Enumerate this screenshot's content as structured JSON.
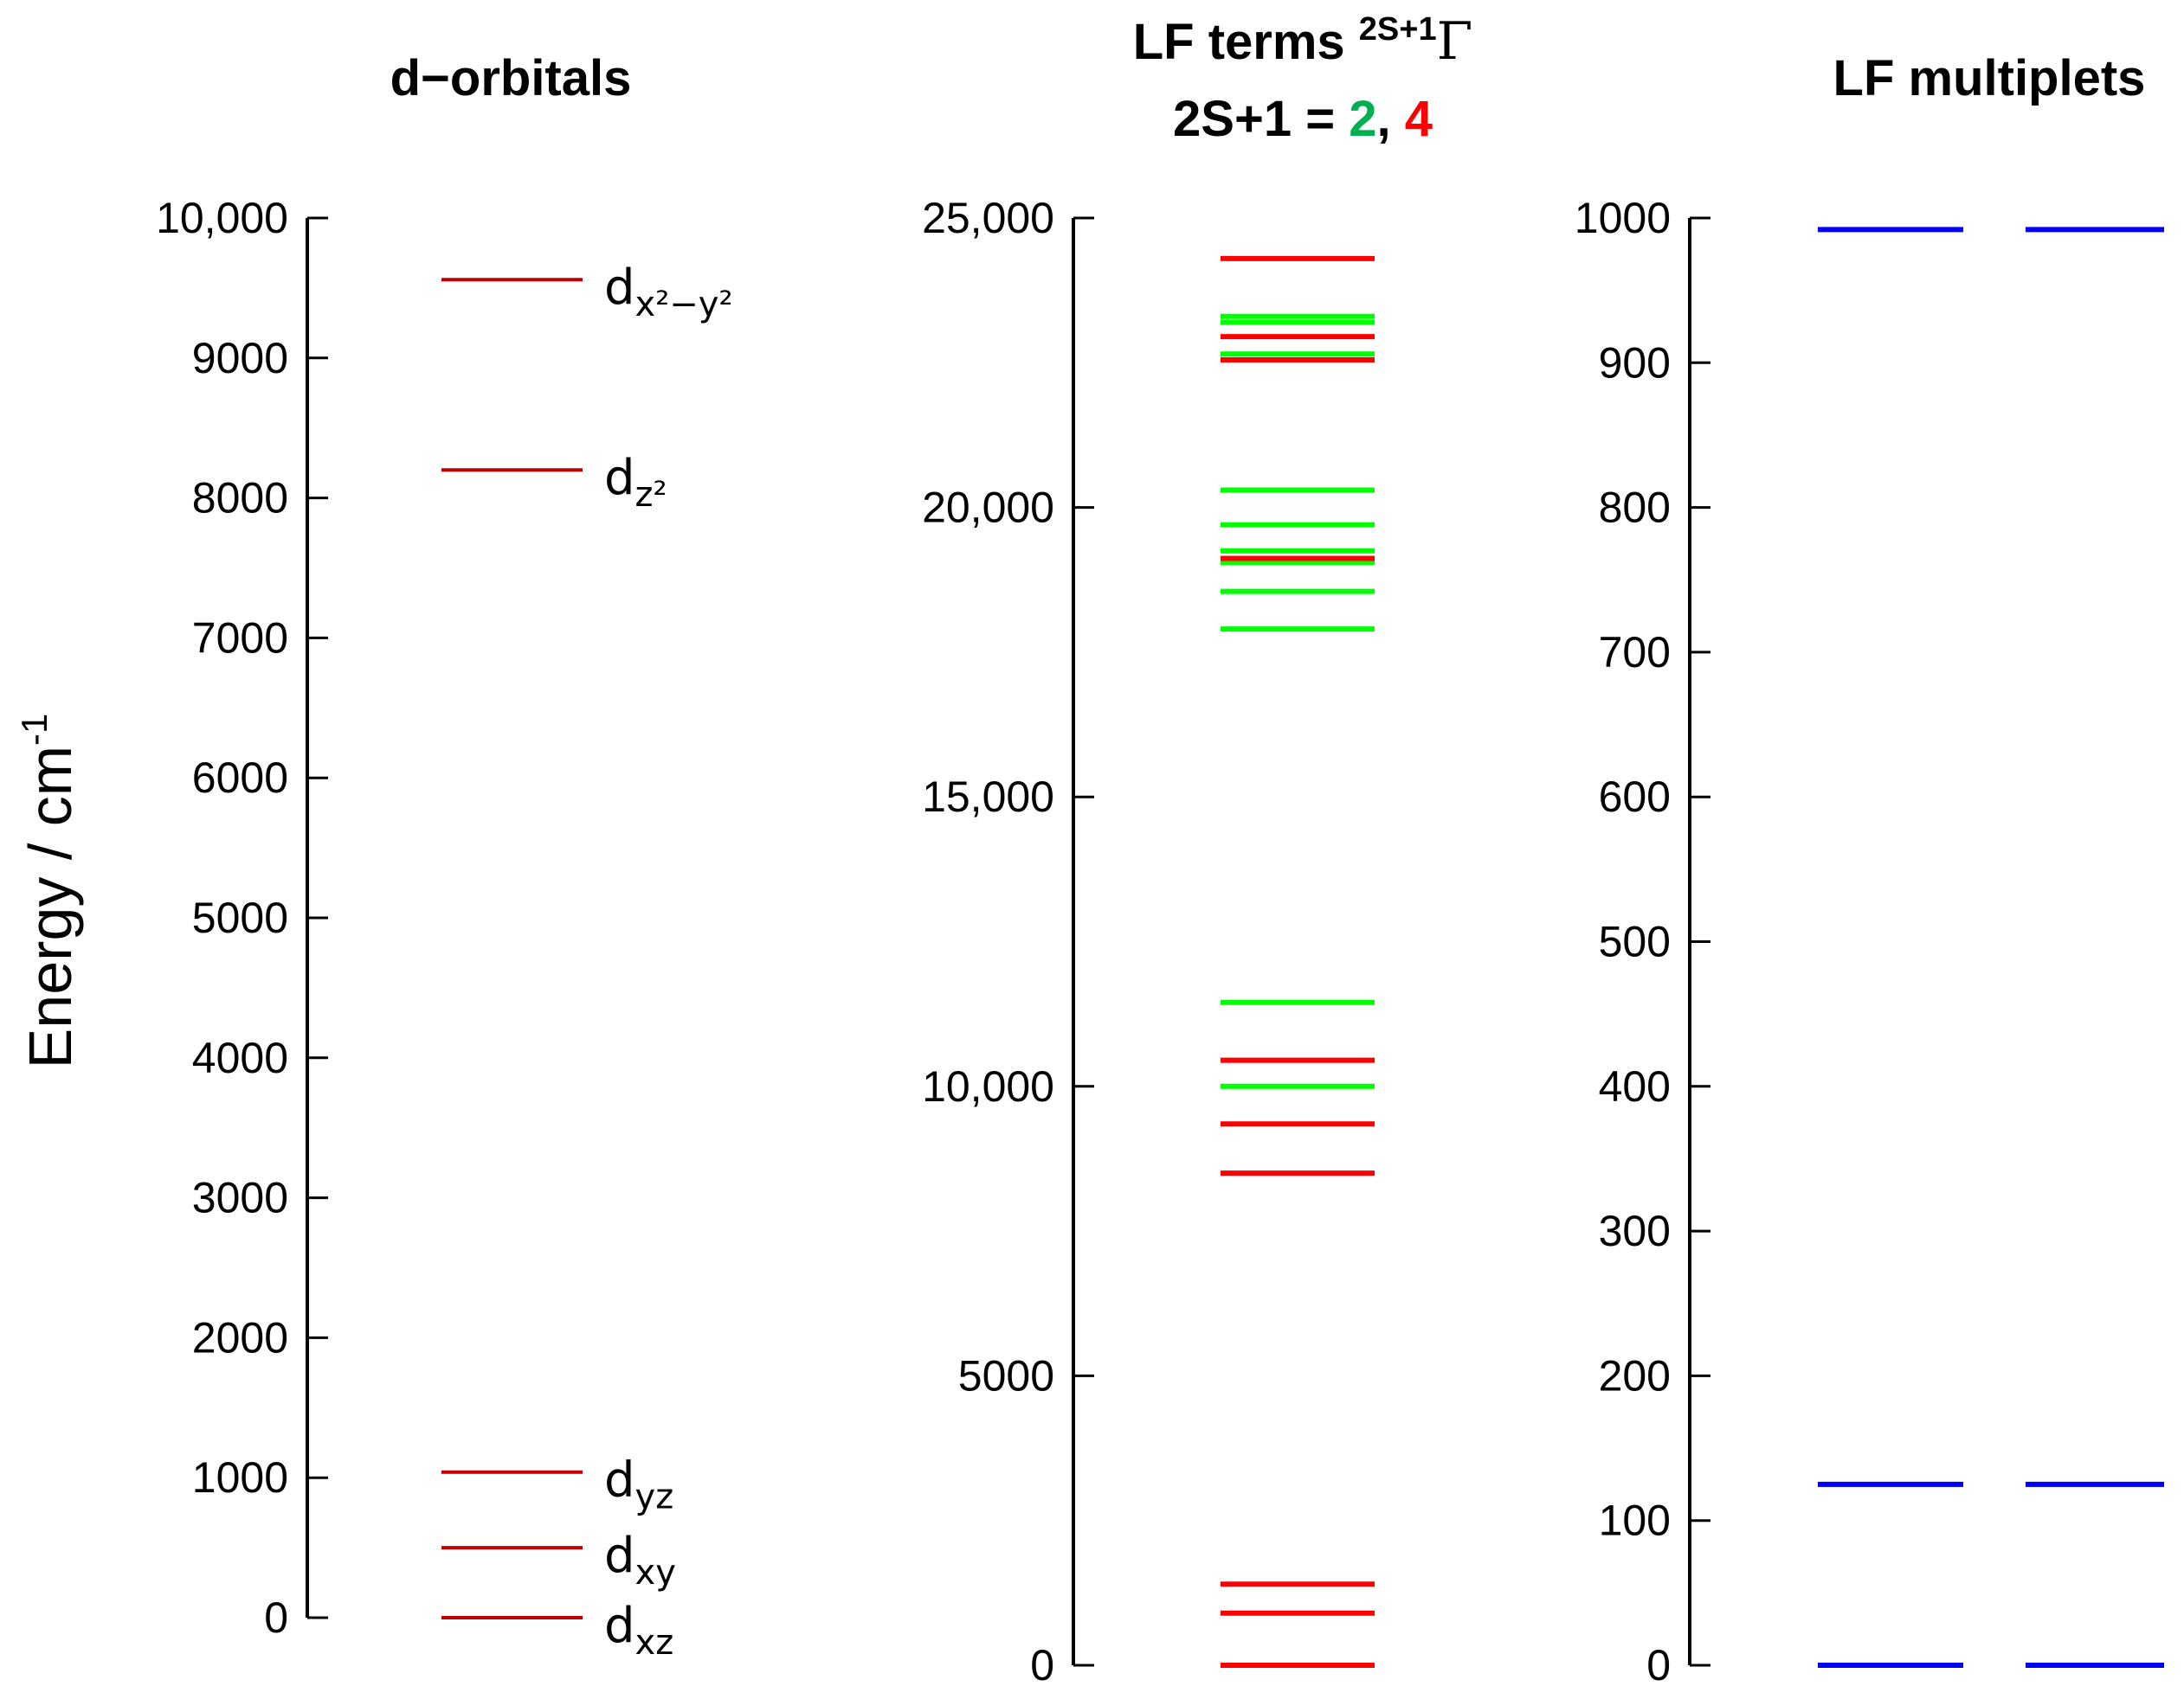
{
  "y_axis_label": "Energy / cm",
  "y_axis_label_sup": "-1",
  "colors": {
    "orbital_level": "#c00000",
    "doublet": "#00ff00",
    "quartet": "#ff0000",
    "multiplet": "#0000ff",
    "multiplicity_2": "#00b050",
    "multiplicity_4": "#ff0000",
    "axis": "#000000"
  },
  "chart_data": [
    {
      "type": "level-diagram",
      "title": "d−orbitals",
      "ylim": [
        0,
        10000
      ],
      "yticks": [
        0,
        1000,
        2000,
        3000,
        4000,
        5000,
        6000,
        7000,
        8000,
        9000,
        10000
      ],
      "ytick_labels": [
        "0",
        "1000",
        "2000",
        "3000",
        "4000",
        "5000",
        "6000",
        "7000",
        "8000",
        "9000",
        "10,000"
      ],
      "levels": [
        {
          "energy": 0,
          "label": "d",
          "sub": "xz"
        },
        {
          "energy": 500,
          "label": "d",
          "sub": "xy"
        },
        {
          "energy": 1040,
          "label": "d",
          "sub": "yz"
        },
        {
          "energy": 8200,
          "label": "d",
          "sub": "z²"
        },
        {
          "energy": 9560,
          "label": "d",
          "sub": "x²−y²"
        }
      ]
    },
    {
      "type": "level-diagram",
      "title_line1": "LF terms ",
      "title_sup": "2S+1",
      "title_gamma": "Γ",
      "title_line2_prefix": "2S+1 = ",
      "title_line2_two": "2",
      "title_line2_sep": ", ",
      "title_line2_four": "4",
      "ylim": [
        0,
        25000
      ],
      "yticks": [
        0,
        5000,
        10000,
        15000,
        20000,
        25000
      ],
      "ytick_labels": [
        "0",
        "5000",
        "10,000",
        "15,000",
        "20,000",
        "25,000"
      ],
      "series": [
        {
          "name": "2S+1 = 2",
          "values": [
            10000,
            11450,
            17900,
            18550,
            19050,
            19250,
            19700,
            20300,
            22650,
            23200,
            23300
          ]
        },
        {
          "name": "2S+1 = 4",
          "values": [
            0,
            900,
            1400,
            8500,
            9350,
            10450,
            19120,
            22550,
            22950,
            24300
          ]
        }
      ]
    },
    {
      "type": "level-diagram",
      "title": "LF multiplets",
      "ylim": [
        0,
        1000
      ],
      "yticks": [
        0,
        100,
        200,
        300,
        400,
        500,
        600,
        700,
        800,
        900,
        1000
      ],
      "ytick_labels": [
        "0",
        "100",
        "200",
        "300",
        "400",
        "500",
        "600",
        "700",
        "800",
        "900",
        "1000"
      ],
      "columns": [
        {
          "values": [
            0,
            125,
            992
          ]
        },
        {
          "values": [
            0,
            125,
            992
          ]
        }
      ]
    }
  ]
}
